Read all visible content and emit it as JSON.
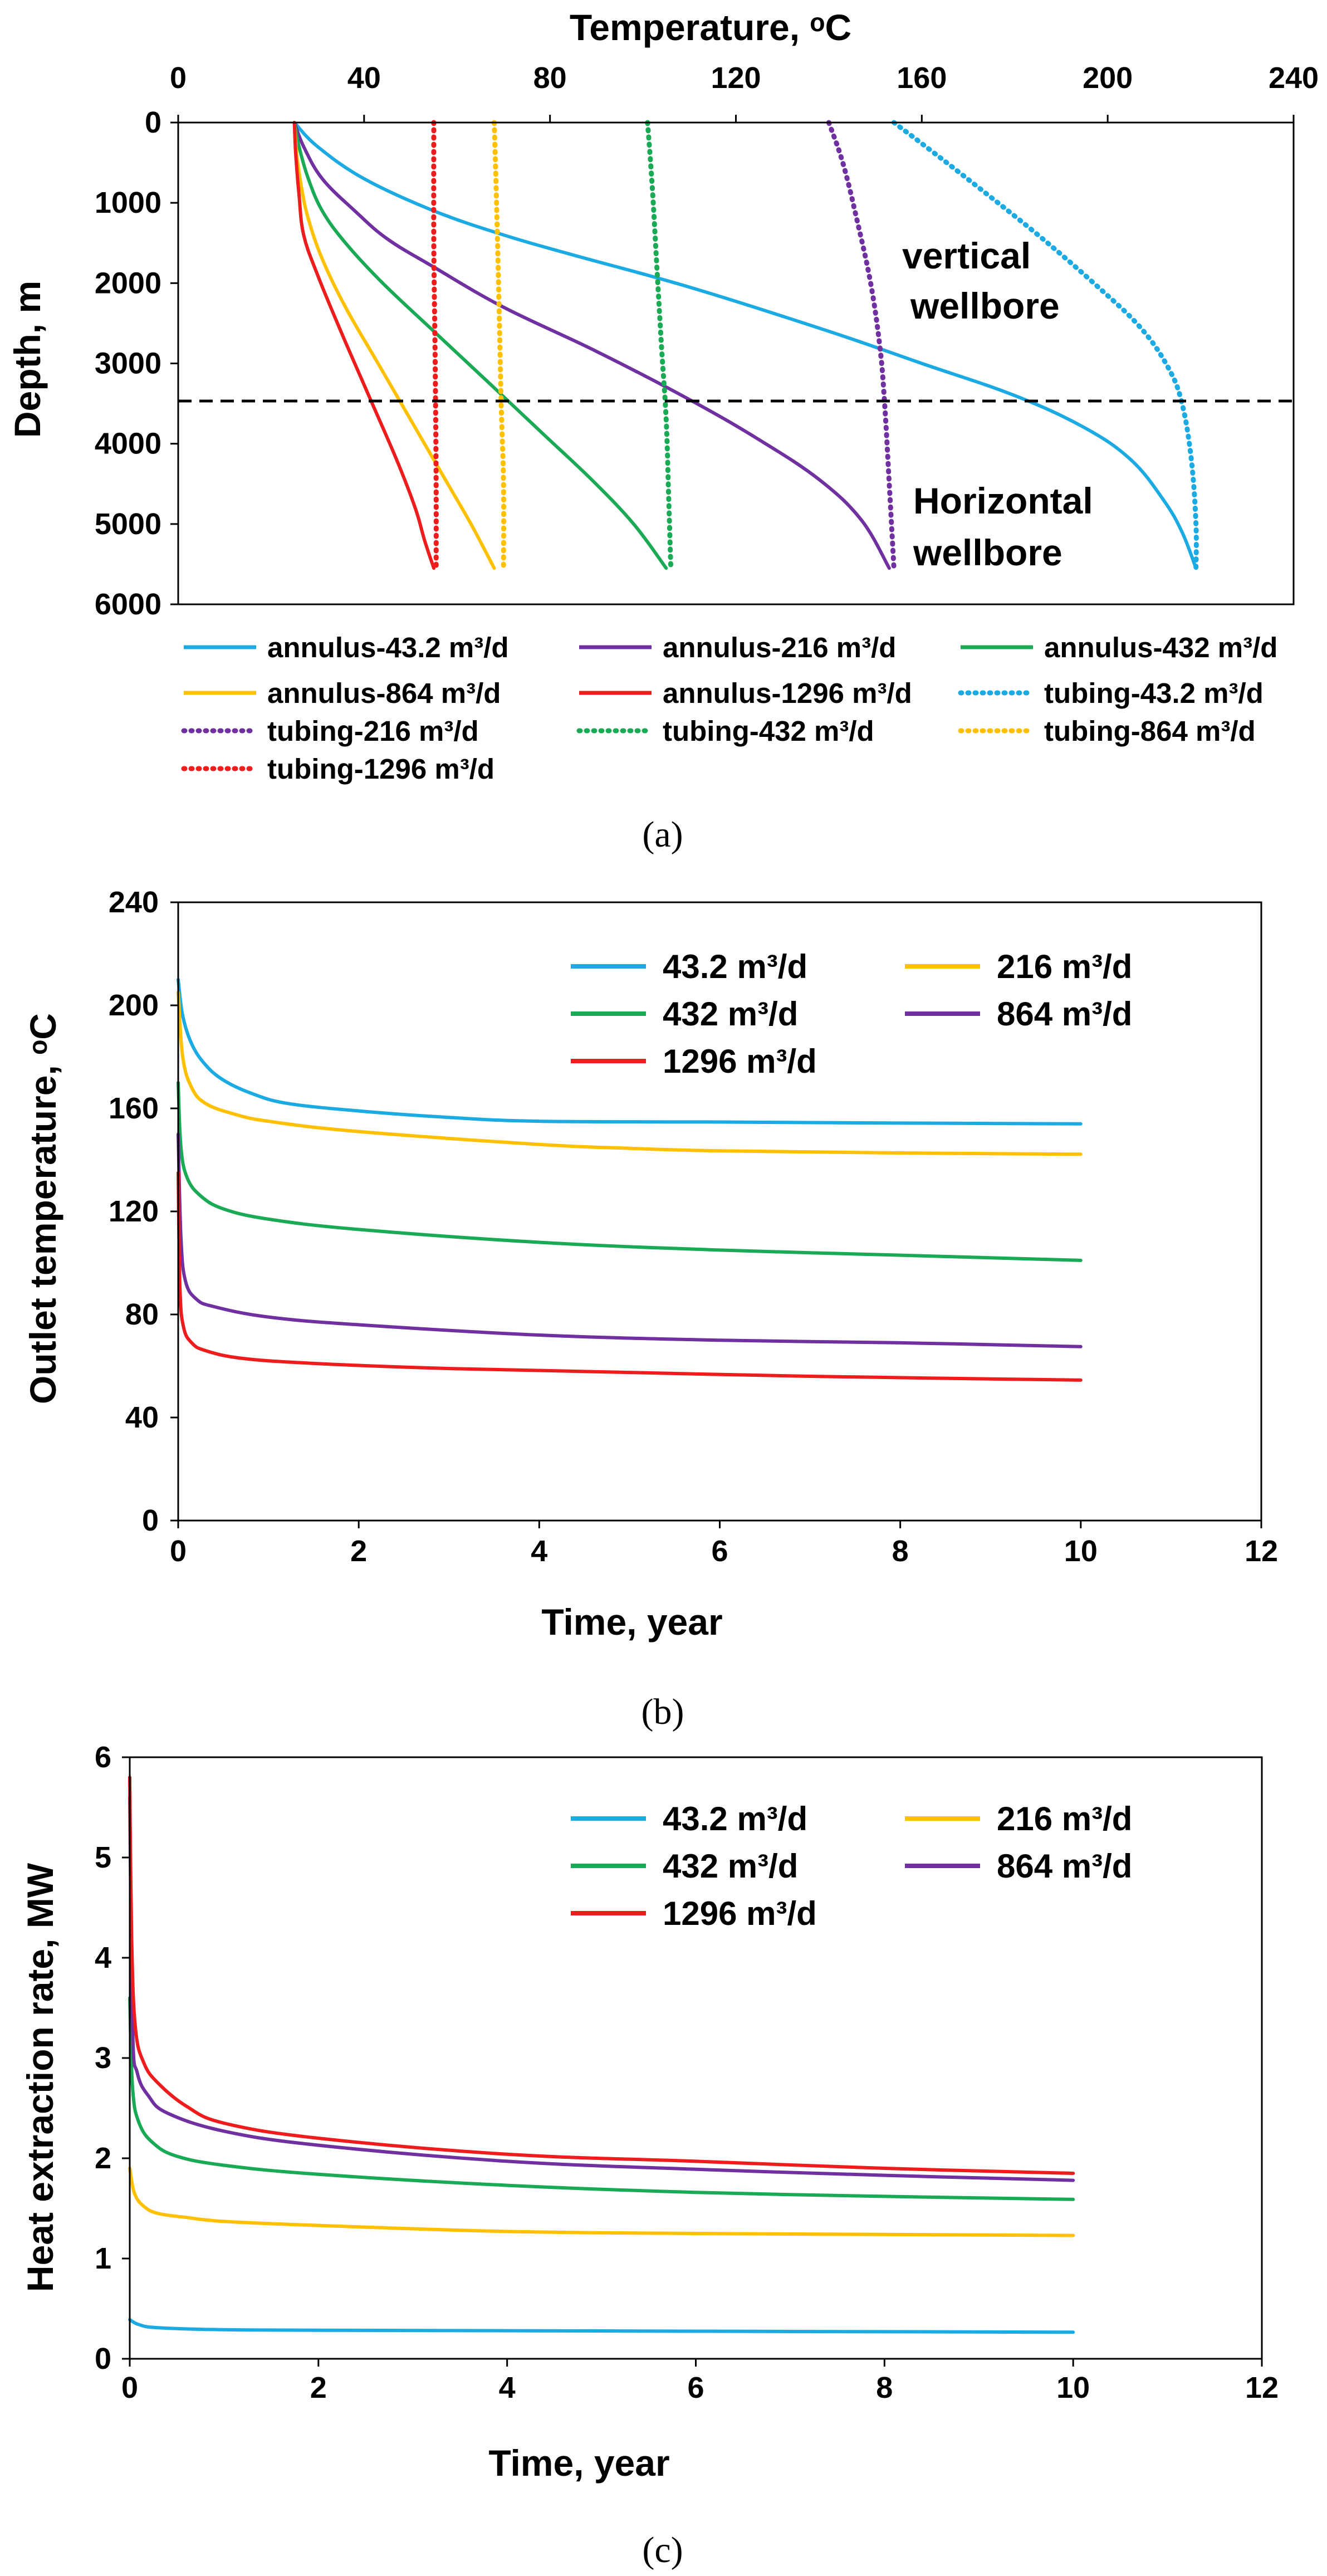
{
  "chart_data": [
    {
      "type": "line",
      "panel": "a",
      "caption": "(a)",
      "xlabel": "Temperature, ᵒC",
      "ylabel": "Depth, m",
      "xlim": [
        0,
        240
      ],
      "ylim": [
        0,
        6000
      ],
      "x_inverted_axis_top": true,
      "y_inverted": true,
      "xticks": [
        "0",
        "40",
        "80",
        "120",
        "160",
        "200",
        "240"
      ],
      "yticks": [
        "0",
        "1000",
        "2000",
        "3000",
        "4000",
        "5000",
        "6000"
      ],
      "reference_line": {
        "depth": 3500,
        "style": "dashed"
      },
      "annotations": [
        {
          "text": "vertical",
          "x": 165,
          "y": 1700
        },
        {
          "text": "wellbore",
          "x": 165,
          "y": 2350
        },
        {
          "text": "Horizontal",
          "x": 165,
          "y": 4800
        },
        {
          "text": "wellbore",
          "x": 165,
          "y": 5450
        }
      ],
      "series": [
        {
          "name": "annulus-43.2 m³/d",
          "color": "#1CAAE3",
          "dash": false,
          "points": [
            [
              25,
              0
            ],
            [
              30,
              300
            ],
            [
              40,
              700
            ],
            [
              55,
              1100
            ],
            [
              70,
              1400
            ],
            [
              85,
              1650
            ],
            [
              110,
              2050
            ],
            [
              140,
              2600
            ],
            [
              160,
              3000
            ],
            [
              180,
              3400
            ],
            [
              195,
              3800
            ],
            [
              205,
              4200
            ],
            [
              212,
              4700
            ],
            [
              216,
              5100
            ],
            [
              219,
              5550
            ]
          ]
        },
        {
          "name": "annulus-216 m³/d",
          "color": "#7030A0",
          "dash": false,
          "points": [
            [
              25,
              0
            ],
            [
              27,
              300
            ],
            [
              31,
              700
            ],
            [
              38,
              1100
            ],
            [
              45,
              1450
            ],
            [
              55,
              1800
            ],
            [
              70,
              2300
            ],
            [
              90,
              2850
            ],
            [
              110,
              3450
            ],
            [
              125,
              3950
            ],
            [
              138,
              4450
            ],
            [
              147,
              4950
            ],
            [
              153,
              5550
            ]
          ]
        },
        {
          "name": "annulus-432 m³/d",
          "color": "#1AAA55",
          "dash": false,
          "points": [
            [
              25,
              0
            ],
            [
              26,
              300
            ],
            [
              28,
              700
            ],
            [
              31,
              1100
            ],
            [
              36,
              1500
            ],
            [
              44,
              2000
            ],
            [
              55,
              2600
            ],
            [
              67,
              3250
            ],
            [
              78,
              3850
            ],
            [
              89,
              4450
            ],
            [
              98,
              5000
            ],
            [
              105,
              5550
            ]
          ]
        },
        {
          "name": "annulus-864 m³/d",
          "color": "#FFC000",
          "dash": false,
          "points": [
            [
              25,
              0
            ],
            [
              25.5,
              400
            ],
            [
              26.5,
              800
            ],
            [
              28,
              1200
            ],
            [
              31,
              1700
            ],
            [
              36,
              2300
            ],
            [
              43,
              3000
            ],
            [
              51,
              3800
            ],
            [
              58,
              4500
            ],
            [
              63,
              5000
            ],
            [
              68,
              5550
            ]
          ]
        },
        {
          "name": "annulus-1296 m³/d",
          "color": "#EE1C1C",
          "dash": false,
          "points": [
            [
              25,
              0
            ],
            [
              25.3,
              400
            ],
            [
              26,
              900
            ],
            [
              27,
              1400
            ],
            [
              30,
              1900
            ],
            [
              35,
              2600
            ],
            [
              41,
              3400
            ],
            [
              47,
              4200
            ],
            [
              51,
              4800
            ],
            [
              53,
              5200
            ],
            [
              55,
              5550
            ]
          ]
        },
        {
          "name": "tubing-43.2 m³/d",
          "color": "#1CAAE3",
          "dash": true,
          "points": [
            [
              154,
              0
            ],
            [
              162,
              350
            ],
            [
              172,
              800
            ],
            [
              185,
              1400
            ],
            [
              197,
              2000
            ],
            [
              207,
              2550
            ],
            [
              213,
              3050
            ],
            [
              216,
              3500
            ],
            [
              218,
              4200
            ],
            [
              219,
              5000
            ],
            [
              219,
              5550
            ]
          ]
        },
        {
          "name": "tubing-216 m³/d",
          "color": "#7030A0",
          "dash": true,
          "points": [
            [
              140,
              0
            ],
            [
              143,
              500
            ],
            [
              146,
              1200
            ],
            [
              149,
              2000
            ],
            [
              151,
              2800
            ],
            [
              152,
              3500
            ],
            [
              153,
              4500
            ],
            [
              154,
              5550
            ]
          ]
        },
        {
          "name": "tubing-432 m³/d",
          "color": "#1AAA55",
          "dash": true,
          "points": [
            [
              101,
              0
            ],
            [
              102,
              800
            ],
            [
              103,
              1800
            ],
            [
              104,
              2800
            ],
            [
              105,
              3700
            ],
            [
              105.5,
              4600
            ],
            [
              106,
              5550
            ]
          ]
        },
        {
          "name": "tubing-864 m³/d",
          "color": "#FFC000",
          "dash": true,
          "points": [
            [
              68,
              0
            ],
            [
              68.5,
              1000
            ],
            [
              69,
              2200
            ],
            [
              69.5,
              3500
            ],
            [
              70,
              4500
            ],
            [
              70,
              5550
            ]
          ]
        },
        {
          "name": "tubing-1296 m³/d",
          "color": "#EE1C1C",
          "dash": true,
          "points": [
            [
              55,
              0
            ],
            [
              55,
              1500
            ],
            [
              55.3,
              3000
            ],
            [
              55.5,
              4500
            ],
            [
              55.5,
              5550
            ]
          ]
        }
      ]
    },
    {
      "type": "line",
      "panel": "b",
      "caption": "(b)",
      "xlabel": "Time, year",
      "ylabel": "Outlet temperature, ᵒC",
      "xlim": [
        0,
        12
      ],
      "ylim": [
        0,
        240
      ],
      "xticks": [
        "0",
        "2",
        "4",
        "6",
        "8",
        "10",
        "12"
      ],
      "yticks": [
        "0",
        "40",
        "80",
        "120",
        "160",
        "200",
        "240"
      ],
      "series": [
        {
          "name": "43.2 m³/d",
          "color": "#1CAAE3",
          "points": [
            [
              0,
              210
            ],
            [
              0.05,
              196
            ],
            [
              0.15,
              185
            ],
            [
              0.3,
              177
            ],
            [
              0.5,
              171
            ],
            [
              0.8,
              166
            ],
            [
              1.2,
              162
            ],
            [
              2,
              159
            ],
            [
              3,
              156.5
            ],
            [
              4,
              155
            ],
            [
              6,
              154.7
            ],
            [
              8,
              154.3
            ],
            [
              10,
              154
            ]
          ]
        },
        {
          "name": "216 m³/d",
          "color": "#FFC000",
          "points": [
            [
              0,
              205
            ],
            [
              0.05,
              180
            ],
            [
              0.15,
              168
            ],
            [
              0.3,
              162
            ],
            [
              0.6,
              158
            ],
            [
              1,
              155
            ],
            [
              2,
              151
            ],
            [
              4,
              146
            ],
            [
              5,
              144.5
            ],
            [
              6,
              143.5
            ],
            [
              8,
              142.7
            ],
            [
              10,
              142.2
            ]
          ]
        },
        {
          "name": "432 m³/d",
          "color": "#1AAA55",
          "points": [
            [
              0,
              170
            ],
            [
              0.03,
              145
            ],
            [
              0.1,
              133
            ],
            [
              0.25,
              126
            ],
            [
              0.5,
              121
            ],
            [
              1,
              117
            ],
            [
              2,
              113
            ],
            [
              4,
              108
            ],
            [
              6,
              105
            ],
            [
              8,
              103
            ],
            [
              10,
              101
            ]
          ]
        },
        {
          "name": "864 m³/d",
          "color": "#7030A0",
          "points": [
            [
              0,
              150
            ],
            [
              0.03,
              110
            ],
            [
              0.08,
              93
            ],
            [
              0.2,
              86
            ],
            [
              0.4,
              83
            ],
            [
              1,
              79
            ],
            [
              2,
              76
            ],
            [
              4,
              72
            ],
            [
              6,
              70
            ],
            [
              8,
              69
            ],
            [
              10,
              67.5
            ]
          ]
        },
        {
          "name": "1296 m³/d",
          "color": "#EE1C1C",
          "points": [
            [
              0,
              135
            ],
            [
              0.02,
              90
            ],
            [
              0.06,
              75
            ],
            [
              0.15,
              69
            ],
            [
              0.3,
              66
            ],
            [
              0.7,
              63
            ],
            [
              1.5,
              61
            ],
            [
              3,
              59
            ],
            [
              5,
              57.5
            ],
            [
              7,
              56
            ],
            [
              10,
              54.5
            ]
          ]
        }
      ],
      "legend": [
        "43.2 m³/d",
        "216 m³/d",
        "432 m³/d",
        "864 m³/d",
        "1296 m³/d"
      ]
    },
    {
      "type": "line",
      "panel": "c",
      "caption": "(c)",
      "xlabel": "Time, year",
      "ylabel": "Heat extraction rate, MW",
      "xlim": [
        0,
        12
      ],
      "ylim": [
        0,
        6
      ],
      "xticks": [
        "0",
        "2",
        "4",
        "6",
        "8",
        "10",
        "12"
      ],
      "yticks": [
        "0",
        "1",
        "2",
        "3",
        "4",
        "5",
        "6"
      ],
      "series": [
        {
          "name": "43.2 m³/d",
          "color": "#1CAAE3",
          "points": [
            [
              0,
              0.39
            ],
            [
              0.1,
              0.34
            ],
            [
              0.3,
              0.31
            ],
            [
              1,
              0.29
            ],
            [
              2,
              0.285
            ],
            [
              4,
              0.28
            ],
            [
              6,
              0.275
            ],
            [
              8,
              0.27
            ],
            [
              10,
              0.265
            ]
          ]
        },
        {
          "name": "216 m³/d",
          "color": "#FFC000",
          "points": [
            [
              0,
              1.9
            ],
            [
              0.05,
              1.65
            ],
            [
              0.15,
              1.52
            ],
            [
              0.3,
              1.45
            ],
            [
              0.6,
              1.41
            ],
            [
              1,
              1.37
            ],
            [
              2,
              1.33
            ],
            [
              4,
              1.27
            ],
            [
              6,
              1.25
            ],
            [
              8,
              1.24
            ],
            [
              10,
              1.23
            ]
          ]
        },
        {
          "name": "432 m³/d",
          "color": "#1AAA55",
          "points": [
            [
              0,
              3.6
            ],
            [
              0.03,
              2.7
            ],
            [
              0.1,
              2.35
            ],
            [
              0.25,
              2.15
            ],
            [
              0.5,
              2.02
            ],
            [
              1,
              1.93
            ],
            [
              2,
              1.84
            ],
            [
              4,
              1.73
            ],
            [
              6,
              1.66
            ],
            [
              8,
              1.62
            ],
            [
              10,
              1.59
            ]
          ]
        },
        {
          "name": "864 m³/d",
          "color": "#7030A0",
          "points": [
            [
              0,
              5.6
            ],
            [
              0.03,
              3.3
            ],
            [
              0.08,
              2.85
            ],
            [
              0.2,
              2.62
            ],
            [
              0.4,
              2.45
            ],
            [
              1,
              2.27
            ],
            [
              2,
              2.13
            ],
            [
              4,
              1.97
            ],
            [
              6,
              1.89
            ],
            [
              8,
              1.83
            ],
            [
              10,
              1.78
            ]
          ]
        },
        {
          "name": "1296 m³/d",
          "color": "#EE1C1C",
          "points": [
            [
              0,
              5.8
            ],
            [
              0.02,
              4.2
            ],
            [
              0.06,
              3.3
            ],
            [
              0.15,
              2.95
            ],
            [
              0.3,
              2.75
            ],
            [
              0.6,
              2.52
            ],
            [
              1,
              2.35
            ],
            [
              2,
              2.2
            ],
            [
              4,
              2.04
            ],
            [
              6,
              1.97
            ],
            [
              8,
              1.9
            ],
            [
              10,
              1.85
            ]
          ]
        }
      ],
      "legend": [
        "43.2 m³/d",
        "216 m³/d",
        "432 m³/d",
        "864 m³/d",
        "1296 m³/d"
      ]
    }
  ]
}
